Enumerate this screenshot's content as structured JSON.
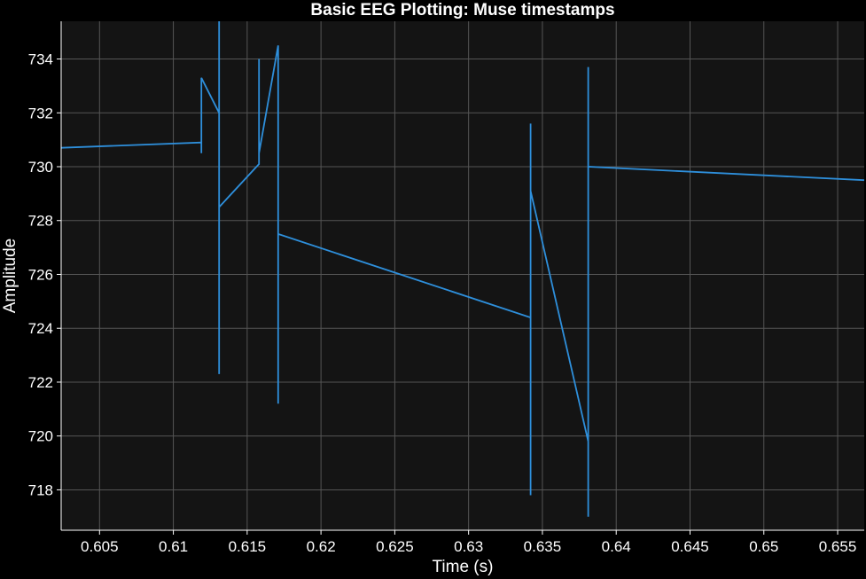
{
  "chart_data": {
    "type": "line",
    "title": "Basic EEG Plotting: Muse timestamps",
    "xlabel": "Time (s)",
    "ylabel": "Amplitude",
    "xlim": [
      0.6024,
      0.6568
    ],
    "ylim": [
      716.5,
      735.4
    ],
    "xticks": [
      0.605,
      0.61,
      0.615,
      0.62,
      0.625,
      0.63,
      0.635,
      0.64,
      0.645,
      0.65,
      0.655
    ],
    "xtick_labels": [
      "0.605",
      "0.61",
      "0.615",
      "0.62",
      "0.625",
      "0.63",
      "0.635",
      "0.64",
      "0.645",
      "0.65",
      "0.655"
    ],
    "yticks": [
      718,
      720,
      722,
      724,
      726,
      728,
      730,
      732,
      734
    ],
    "ytick_labels": [
      "718",
      "720",
      "722",
      "724",
      "726",
      "728",
      "730",
      "732",
      "734"
    ],
    "grid": true,
    "colors": {
      "background": "#141414",
      "page": "#000000",
      "grid": "#555555",
      "line": "#2e8fdb",
      "text": "#ffffff"
    },
    "series": [
      {
        "x": [
          0.6024,
          0.6119,
          0.6119,
          0.6119,
          0.6119,
          0.6131,
          0.6131,
          0.6131,
          0.6131,
          0.6131,
          0.6158,
          0.6158,
          0.6158,
          0.6171,
          0.6171,
          0.6171,
          0.6171,
          0.6342,
          0.6342,
          0.6342,
          0.6342,
          0.6381,
          0.6381,
          0.6381,
          0.6381,
          0.6568
        ],
        "y": [
          730.7,
          730.9,
          730.5,
          733.3,
          733.3,
          732.0,
          735.4,
          722.3,
          728.5,
          728.5,
          730.1,
          734.0,
          730.5,
          734.5,
          721.2,
          727.5,
          727.5,
          724.4,
          731.6,
          717.8,
          729.1,
          719.8,
          733.7,
          717.0,
          730.0,
          729.5
        ]
      }
    ]
  }
}
